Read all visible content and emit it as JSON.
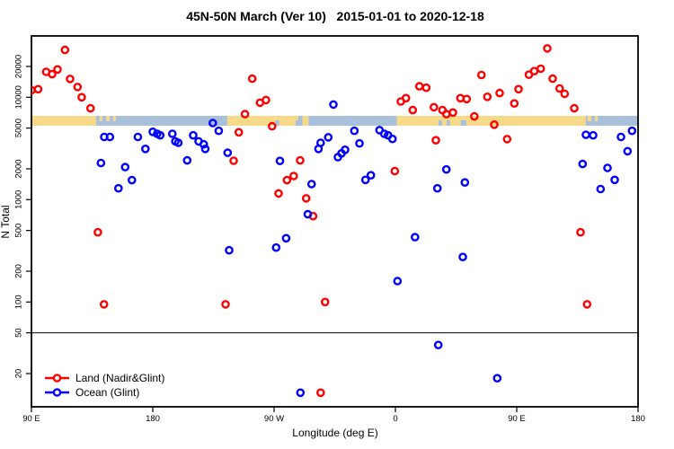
{
  "chart_data": {
    "type": "scatter",
    "title": "45N-50N March (Ver 10)   2015-01-01 to 2020-12-18",
    "xlabel": "Longitude (deg E)",
    "ylabel": "N Total",
    "y_scale": "log",
    "y_ticks": [
      20000,
      10000,
      5000,
      2000,
      1000,
      500,
      200,
      100,
      50,
      20
    ],
    "x_ticks": [
      {
        "label": "90 E",
        "deg": 0
      },
      {
        "label": "180",
        "deg": 90
      },
      {
        "label": "90 W",
        "deg": 180
      },
      {
        "label": "0",
        "deg": 270
      },
      {
        "label": "90 E",
        "deg": 360
      },
      {
        "label": "180",
        "deg": 450
      }
    ],
    "x_axis_span_deg": 450,
    "reference_line_y": 50,
    "legend_position": "bottom-left",
    "grid": false,
    "series": [
      {
        "name": "Land (Nadir&Glint)",
        "color": "#ff0000",
        "marker": "open-circle",
        "points": [
          [
            0,
            11700
          ],
          [
            4.9,
            12000
          ],
          [
            10.9,
            17700
          ],
          [
            15.3,
            16800
          ],
          [
            19.3,
            18700
          ],
          [
            24.9,
            29000
          ],
          [
            28.7,
            15100
          ],
          [
            34.2,
            12600
          ],
          [
            37.3,
            10000
          ],
          [
            43.8,
            7800
          ],
          [
            49.3,
            480
          ],
          [
            53.8,
            95
          ],
          [
            144,
            95
          ],
          [
            150,
            2400
          ],
          [
            153.8,
            4550
          ],
          [
            158.4,
            6840
          ],
          [
            163.8,
            15200
          ],
          [
            169.5,
            8850
          ],
          [
            174,
            9400
          ],
          [
            178.5,
            5210
          ],
          [
            183.3,
            1150
          ],
          [
            189.5,
            1550
          ],
          [
            194.5,
            1700
          ],
          [
            199.3,
            2420
          ],
          [
            203.8,
            1030
          ],
          [
            208.9,
            690
          ],
          [
            214.5,
            13
          ],
          [
            217.8,
            100
          ],
          [
            269.5,
            1900
          ],
          [
            274,
            9100
          ],
          [
            277.8,
            9800
          ],
          [
            282.9,
            7500
          ],
          [
            287.8,
            12800
          ],
          [
            292.9,
            12400
          ],
          [
            298.5,
            8000
          ],
          [
            300,
            3800
          ],
          [
            304.9,
            7500
          ],
          [
            307.8,
            6840
          ],
          [
            312.7,
            7100
          ],
          [
            318.2,
            9800
          ],
          [
            322.9,
            9600
          ],
          [
            328.5,
            6500
          ],
          [
            333.8,
            16500
          ],
          [
            338.2,
            10100
          ],
          [
            343.3,
            5400
          ],
          [
            347.3,
            11000
          ],
          [
            352.9,
            3900
          ],
          [
            358.2,
            8700
          ],
          [
            361.3,
            12000
          ],
          [
            369,
            16600
          ],
          [
            373,
            18000
          ],
          [
            377.8,
            19000
          ],
          [
            382.7,
            30000
          ],
          [
            386.7,
            15200
          ],
          [
            391.8,
            12200
          ],
          [
            395.5,
            10800
          ],
          [
            402.7,
            7800
          ],
          [
            407.3,
            480
          ],
          [
            412.2,
            95
          ]
        ]
      },
      {
        "name": "Ocean (Glint)",
        "color": "#0000ff",
        "marker": "open-circle",
        "points": [
          [
            51.5,
            2280
          ],
          [
            54,
            4100
          ],
          [
            58.2,
            4100
          ],
          [
            64.5,
            1290
          ],
          [
            69.5,
            2080
          ],
          [
            74.5,
            1550
          ],
          [
            78.9,
            4100
          ],
          [
            84.5,
            3130
          ],
          [
            90,
            4600
          ],
          [
            93.3,
            4400
          ],
          [
            95.5,
            4250
          ],
          [
            104.5,
            4400
          ],
          [
            106.7,
            3710
          ],
          [
            108.9,
            3590
          ],
          [
            115.5,
            2420
          ],
          [
            120,
            4250
          ],
          [
            124,
            3710
          ],
          [
            127.8,
            3470
          ],
          [
            128.9,
            3130
          ],
          [
            134.5,
            5600
          ],
          [
            138.9,
            4700
          ],
          [
            145.5,
            2870
          ],
          [
            146.7,
            320
          ],
          [
            181.5,
            340
          ],
          [
            184.3,
            2390
          ],
          [
            188.9,
            420
          ],
          [
            199.5,
            13
          ],
          [
            205,
            720
          ],
          [
            207.8,
            1420
          ],
          [
            212.9,
            3130
          ],
          [
            214.5,
            3590
          ],
          [
            220.2,
            4060
          ],
          [
            224,
            8500
          ],
          [
            227.3,
            2600
          ],
          [
            230,
            2830
          ],
          [
            232.7,
            3070
          ],
          [
            239.5,
            4700
          ],
          [
            243.3,
            3540
          ],
          [
            247.8,
            1560
          ],
          [
            251.8,
            1730
          ],
          [
            258.2,
            4780
          ],
          [
            261.8,
            4400
          ],
          [
            264.5,
            4250
          ],
          [
            267.8,
            3920
          ],
          [
            271.5,
            160
          ],
          [
            284.5,
            430
          ],
          [
            301.1,
            1290
          ],
          [
            301.8,
            38
          ],
          [
            307.8,
            1970
          ],
          [
            320,
            275
          ],
          [
            321.5,
            1470
          ],
          [
            345.5,
            18
          ],
          [
            408.9,
            2230
          ],
          [
            411.3,
            4300
          ],
          [
            416.7,
            4250
          ],
          [
            422.2,
            1270
          ],
          [
            427.3,
            2040
          ],
          [
            432.7,
            1560
          ],
          [
            437.3,
            4100
          ],
          [
            442.2,
            2970
          ],
          [
            445.5,
            4700
          ]
        ]
      }
    ],
    "surface_band": {
      "description": "land/ocean surface type strip along longitude",
      "land_color": "#f7d98a",
      "ocean_color": "#a9c0db",
      "segments": [
        {
          "from": 0,
          "to": 48,
          "surface": "land"
        },
        {
          "from": 48,
          "to": 145.3,
          "surface": "ocean"
        },
        {
          "from": 145.3,
          "to": 198,
          "surface": "land"
        },
        {
          "from": 198,
          "to": 201,
          "surface": "ocean"
        },
        {
          "from": 201,
          "to": 205.5,
          "surface": "land"
        },
        {
          "from": 205.5,
          "to": 271,
          "surface": "ocean"
        },
        {
          "from": 271,
          "to": 411.3,
          "surface": "land"
        },
        {
          "from": 411.3,
          "to": 450,
          "surface": "ocean"
        }
      ],
      "specks": [
        {
          "at": 50.5,
          "w": 2,
          "surface": "land"
        },
        {
          "at": 55.5,
          "w": 2.5,
          "surface": "land"
        },
        {
          "at": 60.5,
          "w": 2,
          "surface": "land"
        },
        {
          "at": 180.8,
          "w": 3,
          "surface": "ocean"
        },
        {
          "at": 196,
          "w": 2,
          "surface": "ocean"
        },
        {
          "at": 302,
          "w": 2.5,
          "surface": "ocean"
        },
        {
          "at": 308,
          "w": 2.5,
          "surface": "ocean"
        },
        {
          "at": 318.5,
          "w": 4,
          "surface": "ocean"
        },
        {
          "at": 412.5,
          "w": 3,
          "surface": "land"
        },
        {
          "at": 418,
          "w": 2,
          "surface": "land"
        }
      ]
    }
  }
}
